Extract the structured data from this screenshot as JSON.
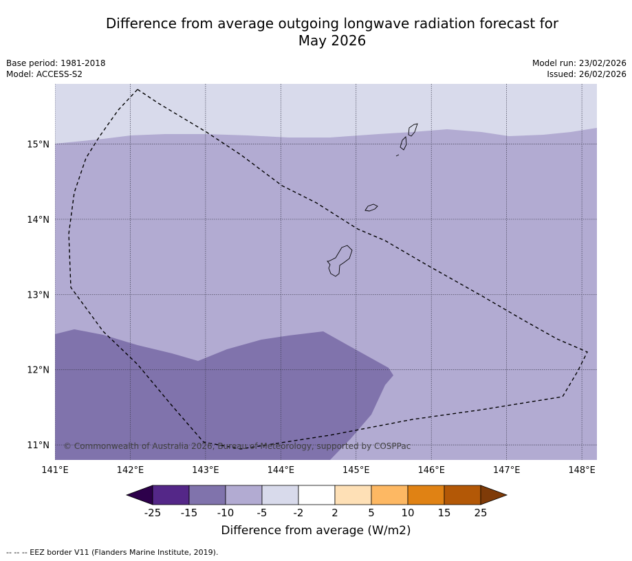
{
  "title": {
    "line1": "Difference from average outgoing longwave radiation forecast for",
    "line2": "May 2026"
  },
  "meta": {
    "base_period": "Base period: 1981-2018",
    "model": "Model: ACCESS-S2",
    "model_run": "Model run: 23/02/2026",
    "issued": "Issued: 26/02/2026"
  },
  "map": {
    "lon_labels": [
      "141°E",
      "142°E",
      "143°E",
      "144°E",
      "145°E",
      "146°E",
      "147°E",
      "148°E"
    ],
    "lat_labels": [
      "15°N",
      "14°N",
      "13°N",
      "12°N",
      "11°N"
    ],
    "lon_values": [
      141,
      142,
      143,
      144,
      145,
      146,
      147,
      148
    ],
    "lat_values": [
      15,
      14,
      13,
      12,
      11
    ],
    "lon_range": [
      141,
      148.2
    ],
    "lat_range": [
      10.8,
      15.8
    ],
    "copyright": "© Commonwealth of Australia 2026, Bureau of Meteorology, supported by COSPPac"
  },
  "colorbar": {
    "tick_labels": [
      "-25",
      "-15",
      "-10",
      "-5",
      "-2",
      "2",
      "5",
      "10",
      "15",
      "25"
    ],
    "colors": [
      "#2d004b",
      "#542788",
      "#8073ac",
      "#b2abd2",
      "#d8daeb",
      "#ffffff",
      "#fee0b6",
      "#fdb863",
      "#e08214",
      "#b35806",
      "#7f3b08"
    ],
    "label": "Difference from average (W/m2)"
  },
  "footnote": "--  --  -- EEZ border V11 (Flanders Marine Institute, 2019)."
}
